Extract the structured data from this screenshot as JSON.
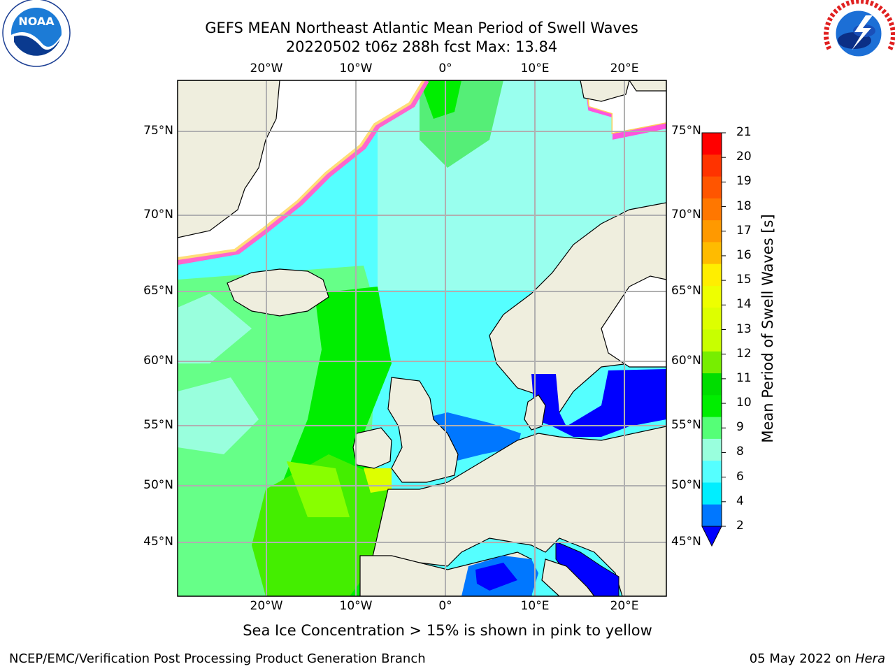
{
  "header": {
    "title_line1": "GEFS MEAN Northeast Atlantic Mean Period of Swell Waves",
    "title_line2": "20220502 t06z 288h fcst   Max: 13.84"
  },
  "logos": {
    "noara_text": "NOAA",
    "noaa_ring": "NATIONAL OCEANIC AND ATMOSPHERIC ADMINISTRATION · U.S. DEPARTMENT OF COMMERCE",
    "nws_ring": "NATIONAL WEATHER SERVICE"
  },
  "axes": {
    "lon_labels": [
      "20°W",
      "10°W",
      "0°",
      "10°E",
      "20°E"
    ],
    "lat_labels": [
      "75°N",
      "70°N",
      "65°N",
      "60°N",
      "55°N",
      "50°N",
      "45°N"
    ]
  },
  "colorbar": {
    "label": "Mean Period of Swell Waves [s]",
    "ticks": [
      "21",
      "20",
      "19",
      "18",
      "17",
      "16",
      "15",
      "14",
      "13",
      "12",
      "11",
      "10",
      "9",
      "8",
      "6",
      "4",
      "2"
    ],
    "colors": [
      "#ff0000",
      "#ff3300",
      "#ff5500",
      "#ff7700",
      "#ff9900",
      "#ffbb00",
      "#ffee00",
      "#eeff00",
      "#ddff00",
      "#c8ff00",
      "#77ee00",
      "#00dd00",
      "#00ee00",
      "#55ff77",
      "#99ffdd",
      "#55ffff",
      "#00eeff",
      "#0077ff",
      "#0000ff"
    ]
  },
  "caption": "Sea Ice Concentration > 15% is shown in pink to yellow",
  "footer": {
    "left": "NCEP/EMC/Verification Post Processing Product Generation Branch",
    "date": "05 May 2022 on ",
    "machine": "Hera"
  }
}
